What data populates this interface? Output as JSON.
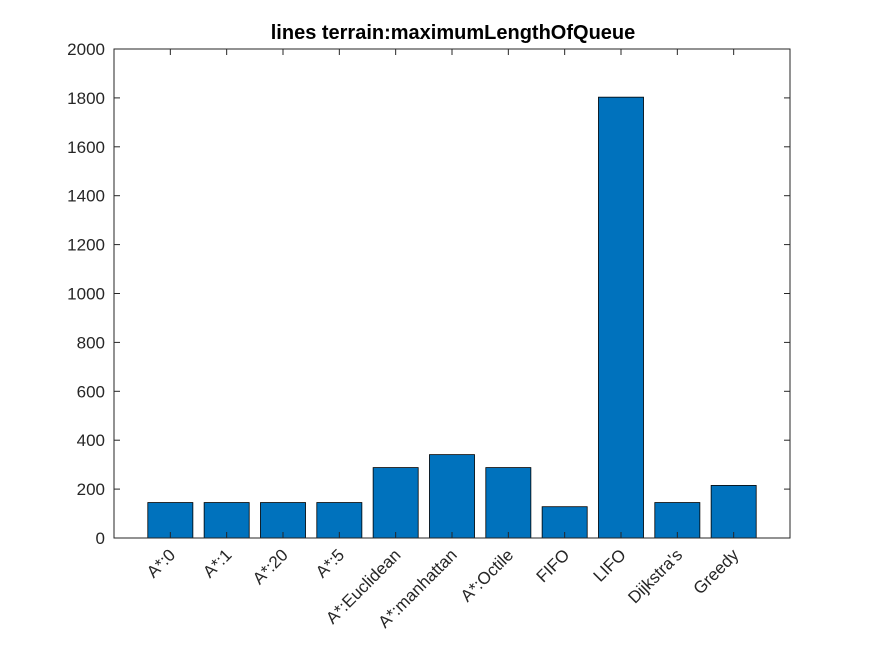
{
  "chart_data": {
    "type": "bar",
    "title": "lines terrain:maximumLengthOfQueue",
    "xlabel": "",
    "ylabel": "",
    "categories": [
      "A*:0",
      "A*:1",
      "A*:20",
      "A*:5",
      "A*:Euclidean",
      "A*:manhattan",
      "A*:Octile",
      "FIFO",
      "LIFO",
      "Dijkstra's",
      "Greedy"
    ],
    "values": [
      145,
      145,
      145,
      145,
      288,
      341,
      288,
      128,
      1803,
      145,
      215
    ],
    "ylim": [
      0,
      2000
    ],
    "yticks": [
      0,
      200,
      400,
      600,
      800,
      1000,
      1200,
      1400,
      1600,
      1800,
      2000
    ],
    "bar_color": "#0072BD",
    "grid": false,
    "legend": "none"
  }
}
